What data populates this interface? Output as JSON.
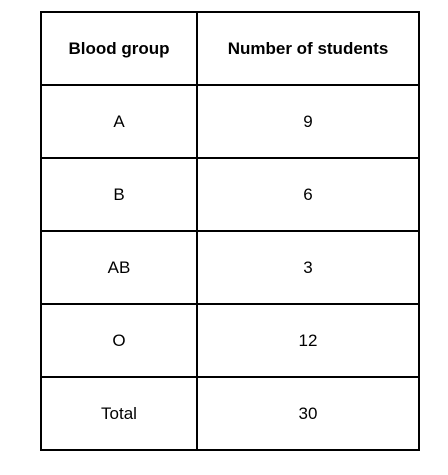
{
  "table": {
    "headers": [
      "Blood group",
      "Number of students"
    ],
    "rows": [
      [
        "A",
        "9"
      ],
      [
        "B",
        "6"
      ],
      [
        "AB",
        "3"
      ],
      [
        "O",
        "12"
      ],
      [
        "Total",
        "30"
      ]
    ]
  }
}
